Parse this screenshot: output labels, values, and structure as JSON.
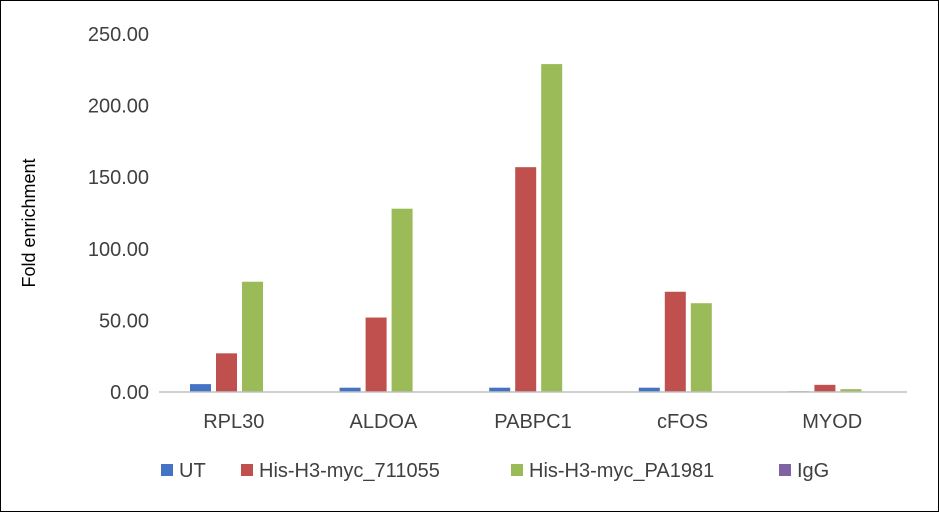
{
  "chart_data": {
    "type": "bar",
    "title": "",
    "xlabel": "",
    "ylabel": "Fold enrichment",
    "ylim": [
      0,
      250
    ],
    "yticks": [
      "0.00",
      "50.00",
      "100.00",
      "150.00",
      "200.00",
      "250.00"
    ],
    "ytick_values": [
      0,
      50,
      100,
      150,
      200,
      250
    ],
    "grid": false,
    "legend_position": "bottom",
    "categories": [
      "RPL30",
      "ALDOA",
      "PABPC1",
      "cFOS",
      "MYOD"
    ],
    "series": [
      {
        "name": "UT",
        "color": "#4472C4",
        "values": [
          5.5,
          3.0,
          3.0,
          3.0,
          0.5
        ]
      },
      {
        "name": "His-H3-myc_711055",
        "color": "#C0504D",
        "values": [
          27.0,
          52.0,
          157.0,
          70.0,
          5.0
        ]
      },
      {
        "name": "His-H3-myc_PA1981",
        "color": "#9BBB59",
        "values": [
          77.0,
          128.0,
          229.0,
          62.0,
          2.0
        ]
      },
      {
        "name": "IgG",
        "color": "#8064A2",
        "values": [
          0.3,
          0.3,
          0.3,
          0.3,
          0.3
        ]
      }
    ]
  }
}
